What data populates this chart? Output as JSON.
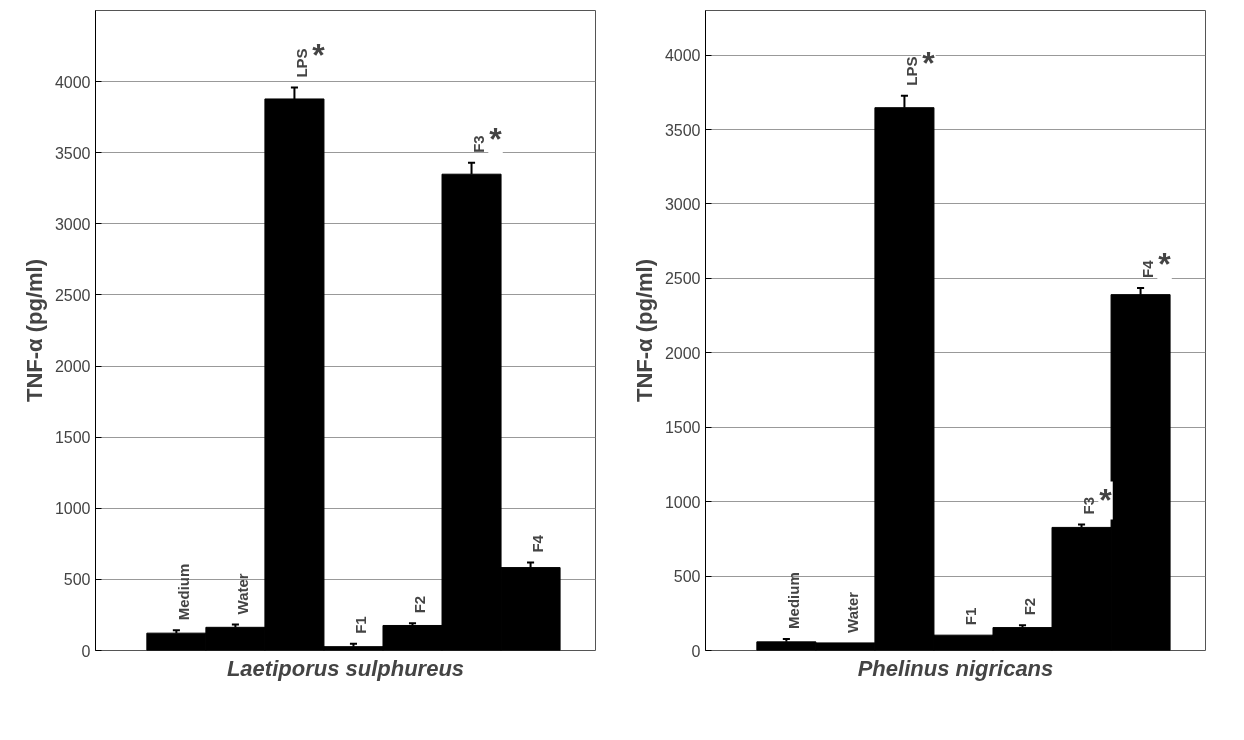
{
  "chart_data": [
    {
      "type": "bar",
      "xlabel": "Laetiporus sulphureus",
      "ylabel": "TNF-α (pg/ml)",
      "categories": [
        "Medium",
        "Water",
        "LPS",
        "F1",
        "F2",
        "F3",
        "F4"
      ],
      "values": [
        122,
        163,
        3878,
        27,
        176,
        3349,
        583
      ],
      "errors": [
        20,
        20,
        80,
        20,
        15,
        80,
        35
      ],
      "color": "#000000",
      "ylim": [
        0,
        4500
      ],
      "yticks": [
        0,
        500,
        1000,
        1500,
        2000,
        2500,
        3000,
        3500,
        4000
      ],
      "grid": "y",
      "tick_labels": "y",
      "annotations": [
        {
          "text": "*",
          "x": "LPS",
          "y": 3878
        },
        {
          "text": "*",
          "x": "F3",
          "y": 3349
        }
      ]
    },
    {
      "type": "bar",
      "xlabel": "Phelinus nigricans",
      "ylabel": "TNF-α (pg/ml)",
      "categories": [
        "Medium",
        "Water",
        "LPS",
        "F1",
        "F2",
        "F3",
        "F4"
      ],
      "values": [
        58,
        51,
        3647,
        103,
        154,
        827,
        2391
      ],
      "errors": [
        20,
        null,
        80,
        null,
        15,
        20,
        45
      ],
      "color": "#000000",
      "ylim": [
        0,
        4300
      ],
      "yticks": [
        0,
        500,
        1000,
        1500,
        2000,
        2500,
        3000,
        3500,
        4000
      ],
      "grid": "y",
      "tick_labels": "y",
      "annotations": [
        {
          "text": "*",
          "x": "LPS",
          "y": 3647
        },
        {
          "text": "*",
          "x": "F3",
          "y": 827
        },
        {
          "text": "*",
          "x": "F4",
          "y": 2391
        }
      ]
    }
  ]
}
